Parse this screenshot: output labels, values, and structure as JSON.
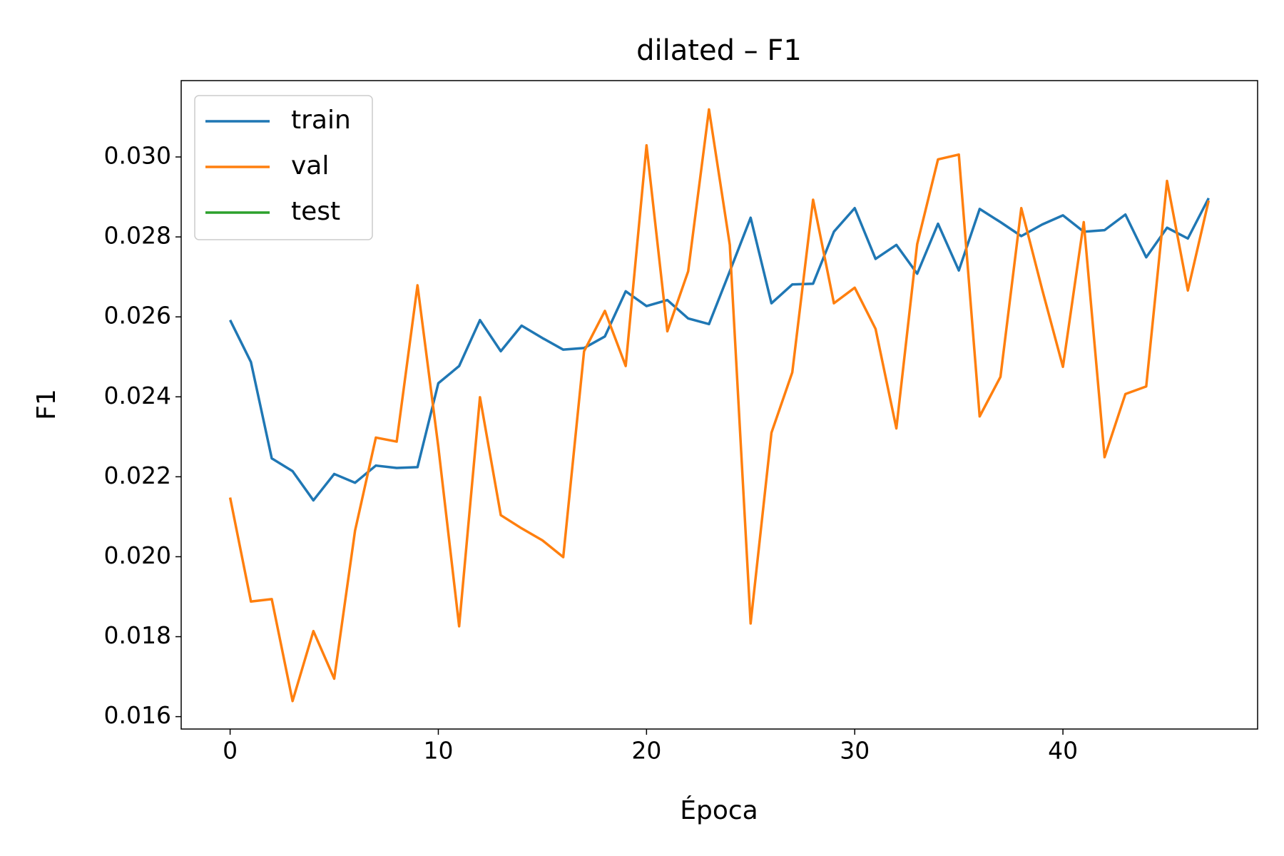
{
  "chart_data": {
    "type": "line",
    "title": "dilated – F1",
    "xlabel": "Época",
    "ylabel": "F1",
    "x": [
      0,
      1,
      2,
      3,
      4,
      5,
      6,
      7,
      8,
      9,
      10,
      11,
      12,
      13,
      14,
      15,
      16,
      17,
      18,
      19,
      20,
      21,
      22,
      23,
      24,
      25,
      26,
      27,
      28,
      29,
      30,
      31,
      32,
      33,
      34,
      35,
      36,
      37,
      38,
      39,
      40,
      41,
      42,
      43,
      44,
      45,
      46,
      47
    ],
    "series": [
      {
        "name": "train",
        "color": "#1f77b4",
        "values": [
          0.02592,
          0.02487,
          0.02246,
          0.02214,
          0.02141,
          0.02207,
          0.02185,
          0.02228,
          0.02222,
          0.02224,
          0.02434,
          0.02477,
          0.02592,
          0.02514,
          0.02578,
          0.02547,
          0.02518,
          0.02522,
          0.02551,
          0.02664,
          0.02627,
          0.02642,
          0.02596,
          0.02582,
          0.02714,
          0.02848,
          0.02634,
          0.02681,
          0.02683,
          0.02813,
          0.02872,
          0.02745,
          0.0278,
          0.02708,
          0.02833,
          0.02716,
          0.0287,
          0.02837,
          0.02802,
          0.02831,
          0.02854,
          0.02813,
          0.02817,
          0.02856,
          0.02749,
          0.02823,
          0.02796,
          0.02897
        ]
      },
      {
        "name": "val",
        "color": "#ff7f0e",
        "values": [
          0.02148,
          0.01888,
          0.01894,
          0.01639,
          0.01814,
          0.01695,
          0.02065,
          0.02298,
          0.02288,
          0.02679,
          0.02275,
          0.01826,
          0.02399,
          0.02104,
          0.02071,
          0.02041,
          0.01999,
          0.02514,
          0.02615,
          0.02477,
          0.03029,
          0.02564,
          0.02714,
          0.03119,
          0.0278,
          0.01833,
          0.0231,
          0.02461,
          0.02893,
          0.02634,
          0.02673,
          0.0257,
          0.02321,
          0.02782,
          0.02994,
          0.03006,
          0.02351,
          0.0245,
          0.02872,
          0.02669,
          0.02475,
          0.02837,
          0.02249,
          0.02407,
          0.02426,
          0.0294,
          0.02666,
          0.02891
        ]
      },
      {
        "name": "test",
        "color": "#2ca02c",
        "values": [
          null,
          null,
          null,
          null,
          null,
          null,
          null,
          null,
          null,
          null,
          null,
          null,
          null,
          null,
          null,
          null,
          null,
          null,
          null,
          null,
          null,
          null,
          null,
          null,
          null,
          null,
          null,
          null,
          null,
          null,
          null,
          null,
          null,
          null,
          null,
          null,
          null,
          null,
          null,
          null,
          null,
          null,
          null,
          null,
          null,
          null,
          null,
          null
        ]
      }
    ],
    "xlim": [
      -2.35,
      49.35
    ],
    "ylim": [
      0.01569,
      0.03191
    ],
    "xticks": [
      0,
      10,
      20,
      30,
      40
    ],
    "yticks": [
      0.016,
      0.018,
      {
        "value": 0.02,
        "label": "0.020"
      },
      0.022,
      0.024,
      0.026,
      0.028,
      {
        "value": 0.03,
        "label": "0.030"
      }
    ],
    "grid": false,
    "legend": "upper left"
  }
}
